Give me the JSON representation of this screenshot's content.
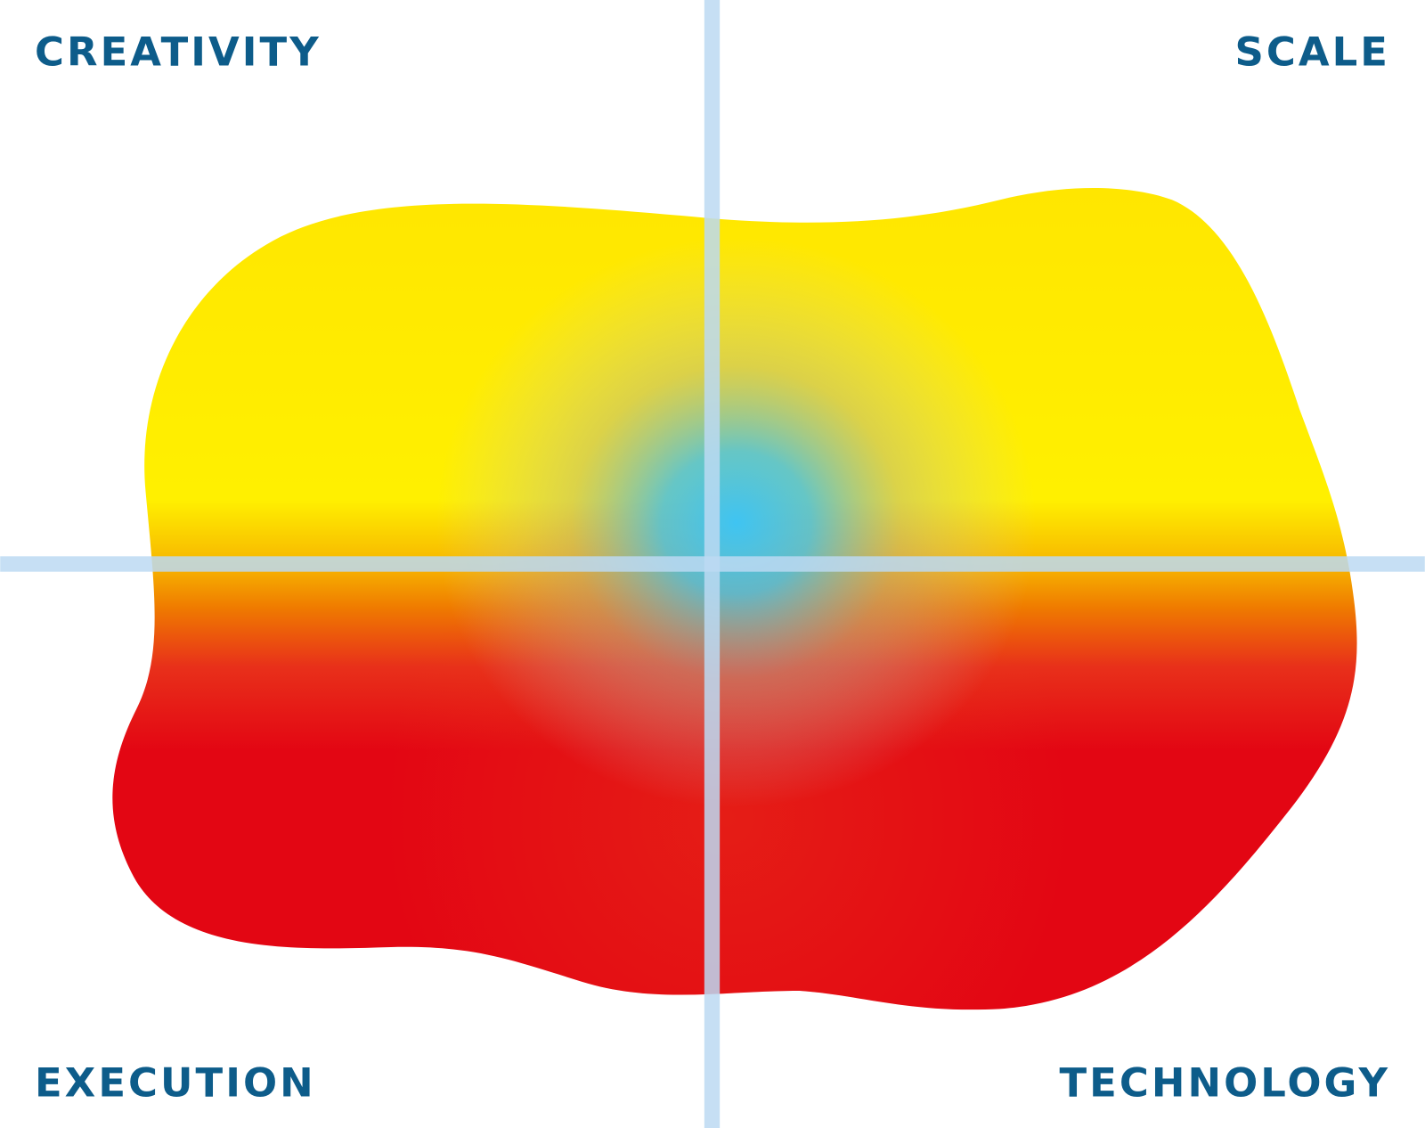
{
  "labels": {
    "top_left": "CREATIVITY",
    "top_right": "SCALE",
    "bottom_left": "EXECUTION",
    "bottom_right": "TECHNOLOGY"
  }
}
